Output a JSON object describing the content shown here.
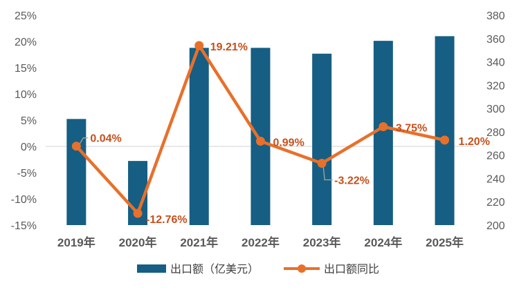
{
  "colors": {
    "bar": "#165e83",
    "line": "#e8702a",
    "label": "#c5501c",
    "axis": "#595959",
    "zero_line": "#d9d9d9"
  },
  "chart_data": {
    "type": "bar",
    "categories": [
      "2019年",
      "2020年",
      "2021年",
      "2022年",
      "2023年",
      "2024年",
      "2025年"
    ],
    "series": [
      {
        "name": "出口额（亿美元）",
        "type": "bar",
        "axis": "right",
        "values": [
          291,
          255,
          352,
          352,
          347,
          358,
          362
        ]
      },
      {
        "name": "出口额同比",
        "type": "line",
        "axis": "left",
        "values": [
          0.04,
          -12.76,
          19.21,
          0.99,
          -3.22,
          3.75,
          1.2
        ],
        "labels": [
          "0.04%",
          "-12.76%",
          "19.21%",
          "0.99%",
          "-3.22%",
          "3.75%",
          "1.20%"
        ]
      }
    ],
    "left_axis": {
      "min": -15,
      "max": 25,
      "step": 5,
      "tick_labels": [
        "-15%",
        "-10%",
        "-5%",
        "0%",
        "5%",
        "10%",
        "15%",
        "20%",
        "25%"
      ]
    },
    "right_axis": {
      "min": 200,
      "max": 380,
      "step": 20,
      "tick_labels": [
        "200",
        "220",
        "240",
        "260",
        "280",
        "300",
        "320",
        "340",
        "360",
        "380"
      ]
    },
    "legend": {
      "position": "bottom",
      "items": [
        "出口额（亿美元）",
        "出口额同比"
      ]
    },
    "grid": false,
    "title": ""
  }
}
